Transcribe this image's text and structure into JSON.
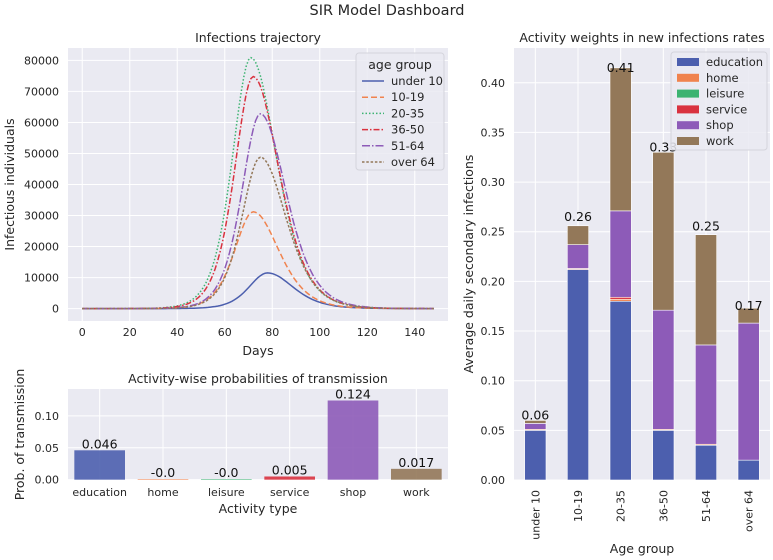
{
  "figure": {
    "title": "SIR Model Dashboard"
  },
  "chart_data": [
    {
      "type": "line",
      "title": "Infections trajectory",
      "xlabel": "Days",
      "ylabel": "Infectious individuals",
      "xlim": [
        -6,
        154
      ],
      "ylim": [
        -4000,
        84000
      ],
      "xticks": [
        0,
        20,
        40,
        60,
        80,
        100,
        120,
        140
      ],
      "yticks": [
        0,
        10000,
        20000,
        30000,
        40000,
        50000,
        60000,
        70000,
        80000
      ],
      "grid": true,
      "legend": {
        "title": "age group",
        "placement": "top-right"
      },
      "x_range": [
        0,
        148
      ],
      "series": [
        {
          "name": "under 10",
          "peak_day": 78,
          "peak_value": 11500,
          "color": "#4c5fae",
          "dash": "solid"
        },
        {
          "name": "10-19",
          "peak_day": 72,
          "peak_value": 31200,
          "color": "#f0834e",
          "dash": "dashed"
        },
        {
          "name": "20-35",
          "peak_day": 71,
          "peak_value": 80900,
          "color": "#3cb371",
          "dash": "dotted"
        },
        {
          "name": "36-50",
          "peak_day": 72,
          "peak_value": 74800,
          "color": "#d9323f",
          "dash": "dashdot"
        },
        {
          "name": "51-64",
          "peak_day": 75,
          "peak_value": 62800,
          "color": "#8d5bb8",
          "dash": "longdashdot"
        },
        {
          "name": "over 64",
          "peak_day": 75,
          "peak_value": 48800,
          "color": "#937859",
          "dash": "densedot"
        }
      ]
    },
    {
      "type": "bar",
      "title": "Activity-wise probabilities of transmission",
      "xlabel": "Activity type",
      "ylabel": "Prob. of transmission",
      "ylim": [
        -0.0005,
        0.142
      ],
      "yticks": [
        0.0,
        0.05,
        0.1
      ],
      "ytick_labels": [
        "0.00",
        "0.05",
        "0.10"
      ],
      "categories": [
        "education",
        "home",
        "leisure",
        "service",
        "shop",
        "work"
      ],
      "values": [
        0.046,
        -0.0,
        -0.0,
        0.005,
        0.124,
        0.017
      ],
      "data_labels": [
        "0.046",
        "-0.0",
        "-0.0",
        "0.005",
        "0.124",
        "0.017"
      ],
      "colors": [
        "#4c5fae",
        "#f0834e",
        "#3cb371",
        "#d9323f",
        "#8d5bb8",
        "#937859"
      ]
    },
    {
      "type": "bar",
      "stacked": true,
      "title": "Activity weights in new infections rates",
      "xlabel": "Age group",
      "ylabel": "Average daily secondary infections",
      "ylim": [
        0,
        0.435
      ],
      "yticks": [
        0.0,
        0.05,
        0.1,
        0.15,
        0.2,
        0.25,
        0.3,
        0.35,
        0.4
      ],
      "ytick_labels": [
        "0.00",
        "0.05",
        "0.10",
        "0.15",
        "0.20",
        "0.25",
        "0.30",
        "0.35",
        "0.40"
      ],
      "legend": {
        "placement": "top-right"
      },
      "categories": [
        "under 10",
        "10-19",
        "20-35",
        "36-50",
        "51-64",
        "over 64"
      ],
      "series": [
        {
          "name": "education",
          "color": "#4c5fae",
          "values": [
            0.05,
            0.212,
            0.18,
            0.05,
            0.035,
            0.02
          ]
        },
        {
          "name": "home",
          "color": "#f0834e",
          "values": [
            0.001,
            0.001,
            0.002,
            0.001,
            0.001,
            0.0
          ]
        },
        {
          "name": "leisure",
          "color": "#3cb371",
          "values": [
            0.0,
            0.0,
            0.0,
            0.0,
            0.0,
            0.0
          ]
        },
        {
          "name": "service",
          "color": "#d9323f",
          "values": [
            0.0,
            0.0,
            0.002,
            0.0,
            0.0,
            0.0
          ]
        },
        {
          "name": "shop",
          "color": "#8d5bb8",
          "values": [
            0.006,
            0.024,
            0.087,
            0.12,
            0.1,
            0.138
          ]
        },
        {
          "name": "work",
          "color": "#937859",
          "values": [
            0.003,
            0.019,
            0.144,
            0.159,
            0.111,
            0.015
          ]
        }
      ],
      "totals": [
        0.06,
        0.26,
        0.41,
        0.33,
        0.25,
        0.17
      ],
      "total_labels": [
        "0.06",
        "0.26",
        "0.41",
        "0.33",
        "0.25",
        "0.17"
      ]
    }
  ]
}
